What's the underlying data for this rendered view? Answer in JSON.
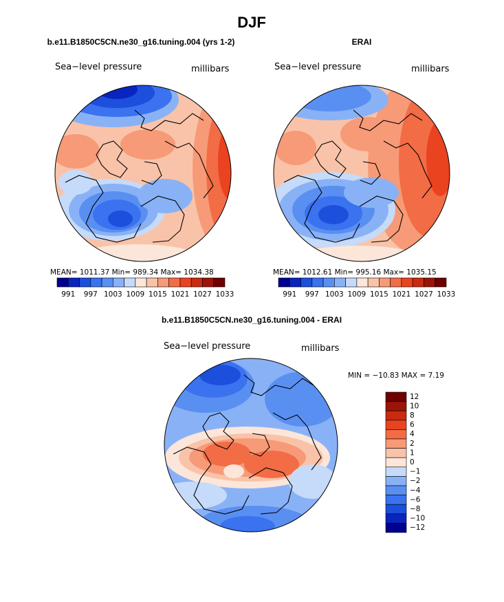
{
  "page": {
    "title": "DJF"
  },
  "palettes": {
    "abs": [
      "#00008f",
      "#0a24c0",
      "#1d4fdd",
      "#3a72ef",
      "#5a8ff2",
      "#89b2f6",
      "#c6daf9",
      "#fbe6d9",
      "#f9c3a9",
      "#f79a77",
      "#f26c45",
      "#e9431f",
      "#c92b10",
      "#9a1408",
      "#6e0000"
    ],
    "diff": [
      "#00008f",
      "#0a24c0",
      "#1d4fdd",
      "#3a72ef",
      "#5a8ff2",
      "#89b2f6",
      "#c6daf9",
      "#fbe6d9",
      "#f9c3a9",
      "#f79a77",
      "#f26c45",
      "#e9431f",
      "#c92b10",
      "#9a1408",
      "#6e0000"
    ]
  },
  "panels": [
    {
      "id": "model",
      "title": "b.e11.B1850C5CN.ne30_g16.tuning.004 (yrs 1-2)",
      "left_label": "Sea−level pressure",
      "right_label": "millibars",
      "stats_text": "MEAN= 1011.37   Min= 989.34   Max= 1034.38",
      "colorbar_ticks": [
        "991",
        "997",
        "1003",
        "1009",
        "1015",
        "1021",
        "1027",
        "1033"
      ]
    },
    {
      "id": "obs",
      "title": "ERAI",
      "left_label": "Sea−level pressure",
      "right_label": "millibars",
      "stats_text": "MEAN= 1012.61   Min= 995.16   Max= 1035.15",
      "colorbar_ticks": [
        "991",
        "997",
        "1003",
        "1009",
        "1015",
        "1021",
        "1027",
        "1033"
      ]
    },
    {
      "id": "diff",
      "title": "b.e11.B1850C5CN.ne30_g16.tuning.004 - ERAI",
      "left_label": "Sea−level pressure",
      "right_label": "millibars",
      "stats_text": "MIN = −10.83  MAX =    7.19",
      "colorbar_ticks": [
        "12",
        "10",
        "8",
        "6",
        "4",
        "2",
        "1",
        "0",
        "−1",
        "−2",
        "−4",
        "−6",
        "−8",
        "−10",
        "−12"
      ]
    }
  ],
  "chart_data": [
    {
      "type": "heatmap",
      "projection": "north-polar-stereographic",
      "title": "b.e11.B1850C5CN.ne30_g16.tuning.004 (yrs 1-2)",
      "variable": "Sea-level pressure",
      "units": "millibars",
      "mean": 1011.37,
      "min": 989.34,
      "max": 1034.38,
      "levels": [
        991,
        994,
        997,
        1000,
        1003,
        1006,
        1009,
        1012,
        1015,
        1018,
        1021,
        1024,
        1027,
        1030,
        1033
      ]
    },
    {
      "type": "heatmap",
      "projection": "north-polar-stereographic",
      "title": "ERAI",
      "variable": "Sea-level pressure",
      "units": "millibars",
      "mean": 1012.61,
      "min": 995.16,
      "max": 1035.15,
      "levels": [
        991,
        994,
        997,
        1000,
        1003,
        1006,
        1009,
        1012,
        1015,
        1018,
        1021,
        1024,
        1027,
        1030,
        1033
      ]
    },
    {
      "type": "heatmap",
      "projection": "north-polar-stereographic",
      "title": "b.e11.B1850C5CN.ne30_g16.tuning.004 - ERAI",
      "variable": "Sea-level pressure",
      "units": "millibars",
      "min": -10.83,
      "max": 7.19,
      "levels": [
        -12,
        -10,
        -8,
        -6,
        -4,
        -2,
        -1,
        0,
        1,
        2,
        4,
        6,
        8,
        10,
        12
      ]
    }
  ]
}
